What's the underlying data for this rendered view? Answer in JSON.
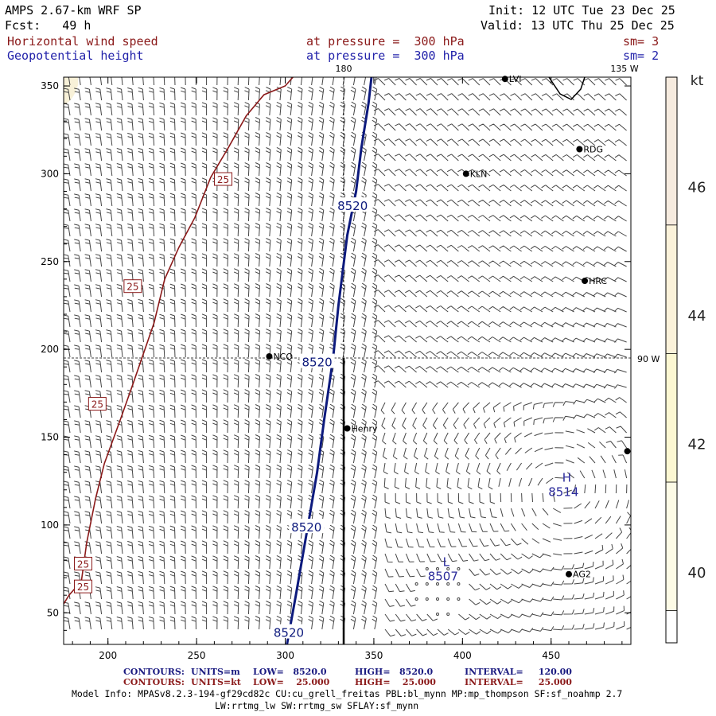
{
  "header": {
    "model": "AMPS 2.67-km WRF SP",
    "forecast": "Fcst:   49 h",
    "init": "Init: 12 UTC Tue 23 Dec 25",
    "valid": "Valid: 13 UTC Thu 25 Dec 25",
    "field1": "Horizontal wind speed",
    "field1_level": "at pressure =  300 hPa",
    "field1_sm": "sm= 3",
    "field2": "Geopotential height",
    "field2_level": "at pressure =  300 hPa",
    "field2_sm": "sm= 2"
  },
  "chart_data": {
    "type": "contour",
    "xlim": [
      175,
      495
    ],
    "ylim": [
      32,
      355
    ],
    "x_ticks": [
      200,
      250,
      300,
      350,
      400,
      450
    ],
    "y_ticks": [
      50,
      100,
      150,
      200,
      250,
      300,
      350
    ],
    "meridian_labels": [
      "180",
      "135 W",
      "90 W"
    ],
    "height_contours": [
      {
        "value": "8520",
        "points": [
          [
            301,
            32
          ],
          [
            306,
            60
          ],
          [
            312,
            95
          ],
          [
            318,
            130
          ],
          [
            322,
            160
          ],
          [
            327,
            195
          ],
          [
            330,
            225
          ],
          [
            335,
            265
          ],
          [
            340,
            290
          ],
          [
            343,
            315
          ],
          [
            347,
            340
          ],
          [
            349,
            358
          ]
        ]
      }
    ],
    "height_contour_labels": [
      {
        "text": "8520",
        "x": 338,
        "y": 282
      },
      {
        "text": "8520",
        "x": 318,
        "y": 193
      },
      {
        "text": "8520",
        "x": 312,
        "y": 99
      },
      {
        "text": "8520",
        "x": 302,
        "y": 39
      }
    ],
    "speed_contours": [
      {
        "value": "25",
        "points": [
          [
            175,
            55
          ],
          [
            178,
            60
          ],
          [
            185,
            68
          ],
          [
            188,
            90
          ],
          [
            193,
            115
          ],
          [
            198,
            135
          ],
          [
            207,
            160
          ],
          [
            214,
            180
          ],
          [
            226,
            215
          ],
          [
            232,
            240
          ],
          [
            240,
            258
          ],
          [
            249,
            275
          ],
          [
            258,
            298
          ],
          [
            268,
            315
          ],
          [
            278,
            333
          ],
          [
            288,
            345
          ],
          [
            300,
            350
          ],
          [
            307,
            358
          ]
        ]
      }
    ],
    "speed_contour_labels": [
      {
        "text": "25",
        "x": 265,
        "y": 297
      },
      {
        "text": "25",
        "x": 214,
        "y": 236
      },
      {
        "text": "25",
        "x": 194,
        "y": 169
      },
      {
        "text": "25",
        "x": 186,
        "y": 78
      },
      {
        "text": "25",
        "x": 186,
        "y": 65
      }
    ],
    "extrema": [
      {
        "letter": "H",
        "value": "8514",
        "x": 457,
        "y": 120
      },
      {
        "letter": "L",
        "value": "8507",
        "x": 389,
        "y": 72
      }
    ],
    "stations": [
      {
        "name": "NCO",
        "x": 291,
        "y": 196
      },
      {
        "name": "Henry",
        "x": 335,
        "y": 155
      },
      {
        "name": "KLN",
        "x": 402,
        "y": 300
      },
      {
        "name": "RDG",
        "x": 466,
        "y": 314
      },
      {
        "name": "HRC",
        "x": 469,
        "y": 239
      },
      {
        "name": "LVI",
        "x": 424,
        "y": 354
      },
      {
        "name": "AG2",
        "x": 460,
        "y": 72
      },
      {
        "name": "",
        "x": 493,
        "y": 142
      }
    ],
    "colorbar": {
      "unit": "kt",
      "ticks": [
        "40",
        "42",
        "44",
        "46"
      ],
      "tick_values": [
        40,
        42,
        44,
        46
      ],
      "range": [
        38.9,
        47.7
      ],
      "bands": [
        {
          "from": 38.9,
          "to": 39.4,
          "color": "#ffffff"
        },
        {
          "from": 39.4,
          "to": 41.4,
          "color": "#fdfbe6"
        },
        {
          "from": 41.4,
          "to": 43.4,
          "color": "#fcf7d2"
        },
        {
          "from": 43.4,
          "to": 45.4,
          "color": "#fbf2da"
        },
        {
          "from": 45.4,
          "to": 47.7,
          "color": "#f6ebdf"
        }
      ]
    },
    "colors": {
      "height": "#0d1a7d",
      "speed": "#8b1a1a",
      "barb": "#444444"
    }
  },
  "footer": {
    "c1_label": "CONTOURS:",
    "c1_units": "UNITS=m",
    "c1_low": "LOW=   8520.0",
    "c1_high": "HIGH=   8520.0",
    "c1_interval": "INTERVAL=     120.00",
    "c2_label": "CONTOURS:",
    "c2_units": "UNITS=kt",
    "c2_low": "LOW=    25.000",
    "c2_high": "HIGH=    25.000",
    "c2_interval": "INTERVAL=     25.000",
    "model_info": "Model Info: MPASv8.2.3-194-gf29cd82c CU:cu_grell_freitas PBL:bl_mynn MP:mp_thompson SF:sf_noahmp 2.7",
    "model_info2": "LW:rrtmg_lw SW:rrtmg_sw SFLAY:sf_mynn"
  }
}
